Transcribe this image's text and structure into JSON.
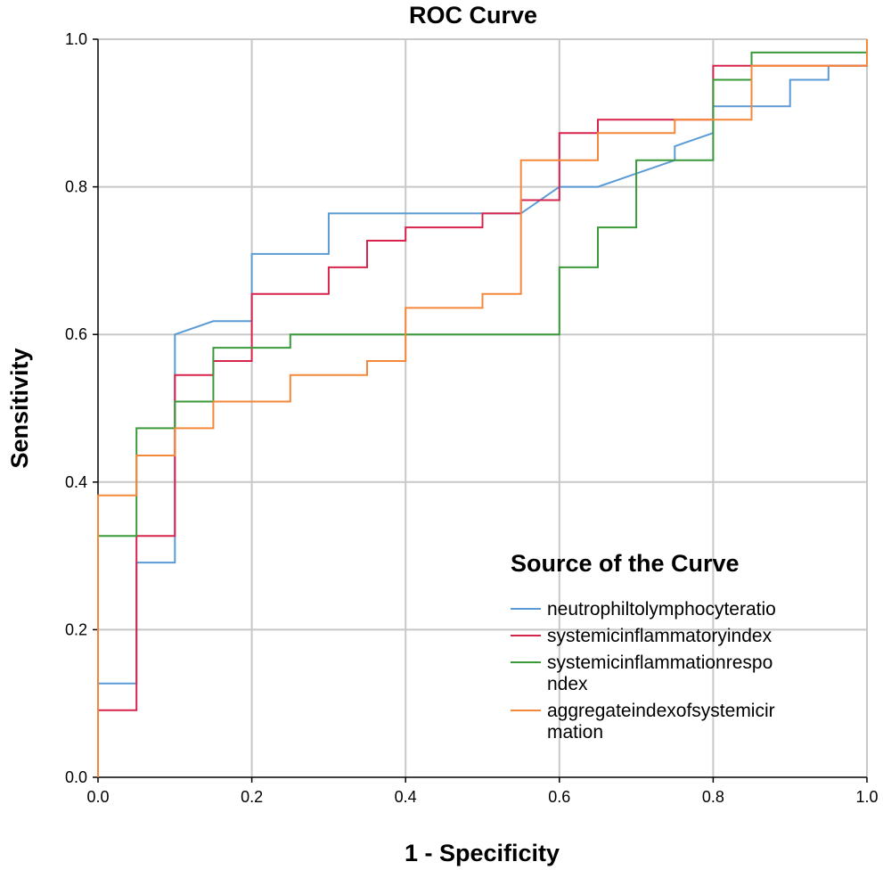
{
  "chart_data": {
    "type": "line",
    "title": "ROC Curve",
    "xlabel": "1 - Specificity",
    "ylabel": "Sensitivity",
    "xlim": [
      0.0,
      1.0
    ],
    "ylim": [
      0.0,
      1.0
    ],
    "xticks": [
      "0.0",
      "0.2",
      "0.4",
      "0.6",
      "0.8",
      "1.0"
    ],
    "yticks": [
      "0.0",
      "0.2",
      "0.4",
      "0.6",
      "0.8",
      "1.0"
    ],
    "grid": true,
    "legend": {
      "title": "Source of the Curve",
      "placement": "bottom-right"
    },
    "series": [
      {
        "name": "neutrophiltolymphocyteratio",
        "color": "#5b9bd5",
        "points": [
          [
            0,
            0
          ],
          [
            0,
            0.127
          ],
          [
            0.05,
            0.127
          ],
          [
            0.05,
            0.291
          ],
          [
            0.1,
            0.291
          ],
          [
            0.1,
            0.6
          ],
          [
            0.15,
            0.618
          ],
          [
            0.2,
            0.618
          ],
          [
            0.2,
            0.709
          ],
          [
            0.3,
            0.709
          ],
          [
            0.3,
            0.764
          ],
          [
            0.55,
            0.764
          ],
          [
            0.6,
            0.8
          ],
          [
            0.65,
            0.8
          ],
          [
            0.7,
            0.818
          ],
          [
            0.75,
            0.836
          ],
          [
            0.75,
            0.855
          ],
          [
            0.8,
            0.873
          ],
          [
            0.8,
            0.909
          ],
          [
            0.9,
            0.909
          ],
          [
            0.9,
            0.945
          ],
          [
            0.95,
            0.945
          ],
          [
            0.95,
            0.964
          ],
          [
            1.0,
            0.964
          ],
          [
            1.0,
            1.0
          ]
        ]
      },
      {
        "name": "systemicinflammatoryindex",
        "color": "#d6244c",
        "points": [
          [
            0,
            0
          ],
          [
            0,
            0.091
          ],
          [
            0.05,
            0.091
          ],
          [
            0.05,
            0.327
          ],
          [
            0.1,
            0.327
          ],
          [
            0.1,
            0.545
          ],
          [
            0.15,
            0.545
          ],
          [
            0.15,
            0.564
          ],
          [
            0.2,
            0.564
          ],
          [
            0.2,
            0.655
          ],
          [
            0.3,
            0.655
          ],
          [
            0.3,
            0.691
          ],
          [
            0.35,
            0.691
          ],
          [
            0.35,
            0.727
          ],
          [
            0.4,
            0.727
          ],
          [
            0.4,
            0.745
          ],
          [
            0.5,
            0.745
          ],
          [
            0.5,
            0.764
          ],
          [
            0.55,
            0.764
          ],
          [
            0.55,
            0.782
          ],
          [
            0.6,
            0.782
          ],
          [
            0.6,
            0.873
          ],
          [
            0.65,
            0.873
          ],
          [
            0.65,
            0.891
          ],
          [
            0.8,
            0.891
          ],
          [
            0.8,
            0.964
          ],
          [
            1.0,
            0.964
          ],
          [
            1.0,
            1.0
          ]
        ]
      },
      {
        "name": "systemicinflammationrespondex",
        "display_lines": [
          "systemicinflammationrespo",
          "ndex"
        ],
        "color": "#3a9a3a",
        "points": [
          [
            0,
            0
          ],
          [
            0,
            0.327
          ],
          [
            0.05,
            0.327
          ],
          [
            0.05,
            0.473
          ],
          [
            0.1,
            0.473
          ],
          [
            0.1,
            0.509
          ],
          [
            0.15,
            0.509
          ],
          [
            0.15,
            0.582
          ],
          [
            0.25,
            0.582
          ],
          [
            0.25,
            0.6
          ],
          [
            0.6,
            0.6
          ],
          [
            0.6,
            0.691
          ],
          [
            0.65,
            0.691
          ],
          [
            0.65,
            0.745
          ],
          [
            0.7,
            0.745
          ],
          [
            0.7,
            0.836
          ],
          [
            0.8,
            0.836
          ],
          [
            0.8,
            0.945
          ],
          [
            0.85,
            0.945
          ],
          [
            0.85,
            0.982
          ],
          [
            1.0,
            0.982
          ],
          [
            1.0,
            1.0
          ]
        ]
      },
      {
        "name": "aggregateindexofsystemicirmation",
        "display_lines": [
          "aggregateindexofsystemicir",
          "mation"
        ],
        "color": "#f4873a",
        "points": [
          [
            0,
            0
          ],
          [
            0,
            0.382
          ],
          [
            0.05,
            0.382
          ],
          [
            0.05,
            0.436
          ],
          [
            0.1,
            0.436
          ],
          [
            0.1,
            0.473
          ],
          [
            0.15,
            0.473
          ],
          [
            0.15,
            0.509
          ],
          [
            0.25,
            0.509
          ],
          [
            0.25,
            0.545
          ],
          [
            0.35,
            0.545
          ],
          [
            0.35,
            0.564
          ],
          [
            0.4,
            0.564
          ],
          [
            0.4,
            0.636
          ],
          [
            0.5,
            0.636
          ],
          [
            0.5,
            0.655
          ],
          [
            0.55,
            0.655
          ],
          [
            0.55,
            0.836
          ],
          [
            0.65,
            0.836
          ],
          [
            0.65,
            0.873
          ],
          [
            0.75,
            0.873
          ],
          [
            0.75,
            0.891
          ],
          [
            0.85,
            0.891
          ],
          [
            0.85,
            0.964
          ],
          [
            1.0,
            0.964
          ],
          [
            1.0,
            1.0
          ]
        ]
      }
    ]
  }
}
